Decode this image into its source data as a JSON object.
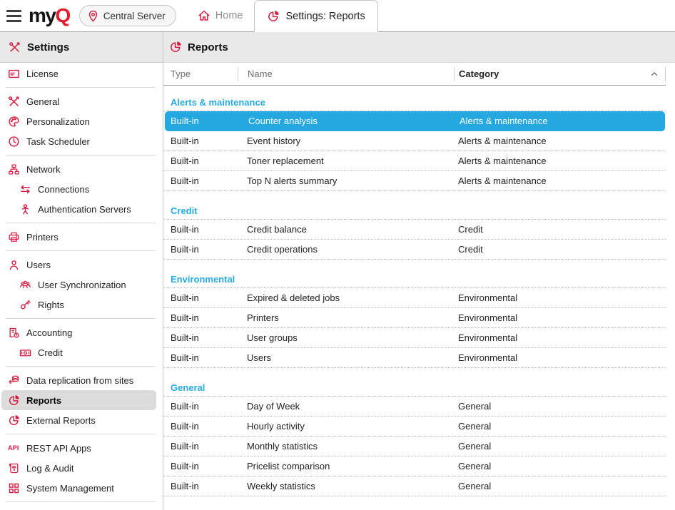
{
  "topbar": {
    "logo_my": "my",
    "logo_q": "Q",
    "server_button_label": "Central Server",
    "home_tab_label": "Home",
    "settings_tab_label": "Settings: Reports"
  },
  "icons": {
    "api_text": "API"
  },
  "sidebar": {
    "title": "Settings",
    "groups": [
      {
        "items": [
          {
            "label": "License",
            "icon": "license"
          }
        ]
      },
      {
        "items": [
          {
            "label": "General",
            "icon": "tools"
          },
          {
            "label": "Personalization",
            "icon": "palette"
          },
          {
            "label": "Task Scheduler",
            "icon": "clock"
          }
        ]
      },
      {
        "items": [
          {
            "label": "Network",
            "icon": "network"
          },
          {
            "label": "Connections",
            "icon": "connections",
            "indent": true
          },
          {
            "label": "Authentication Servers",
            "icon": "auth",
            "indent": true
          }
        ]
      },
      {
        "items": [
          {
            "label": "Printers",
            "icon": "printer"
          }
        ]
      },
      {
        "items": [
          {
            "label": "Users",
            "icon": "user"
          },
          {
            "label": "User Synchronization",
            "icon": "usersync",
            "indent": true
          },
          {
            "label": "Rights",
            "icon": "key",
            "indent": true
          }
        ]
      },
      {
        "items": [
          {
            "label": "Accounting",
            "icon": "accounting"
          },
          {
            "label": "Credit",
            "icon": "money",
            "indent": true
          }
        ]
      },
      {
        "items": [
          {
            "label": "Data replication from sites",
            "icon": "replication"
          },
          {
            "label": "Reports",
            "icon": "pie",
            "selected": true
          },
          {
            "label": "External Reports",
            "icon": "pie"
          }
        ]
      },
      {
        "items": [
          {
            "label": "REST API Apps",
            "icon": "api"
          },
          {
            "label": "Log & Audit",
            "icon": "log"
          },
          {
            "label": "System Management",
            "icon": "grid"
          }
        ]
      }
    ]
  },
  "main": {
    "title": "Reports",
    "table": {
      "columns": [
        {
          "label": "Type"
        },
        {
          "label": "Name"
        },
        {
          "label": "Category",
          "sort": "asc"
        }
      ],
      "groups": [
        {
          "name": "Alerts & maintenance",
          "rows": [
            {
              "type": "Built-in",
              "name": "Counter analysis",
              "category": "Alerts & maintenance",
              "selected": true
            },
            {
              "type": "Built-in",
              "name": "Event history",
              "category": "Alerts & maintenance"
            },
            {
              "type": "Built-in",
              "name": "Toner replacement",
              "category": "Alerts & maintenance"
            },
            {
              "type": "Built-in",
              "name": "Top N alerts summary",
              "category": "Alerts & maintenance"
            }
          ]
        },
        {
          "name": "Credit",
          "rows": [
            {
              "type": "Built-in",
              "name": "Credit balance",
              "category": "Credit"
            },
            {
              "type": "Built-in",
              "name": "Credit operations",
              "category": "Credit"
            }
          ]
        },
        {
          "name": "Environmental",
          "rows": [
            {
              "type": "Built-in",
              "name": "Expired & deleted jobs",
              "category": "Environmental"
            },
            {
              "type": "Built-in",
              "name": "Printers",
              "category": "Environmental"
            },
            {
              "type": "Built-in",
              "name": "User groups",
              "category": "Environmental"
            },
            {
              "type": "Built-in",
              "name": "Users",
              "category": "Environmental"
            }
          ]
        },
        {
          "name": "General",
          "rows": [
            {
              "type": "Built-in",
              "name": "Day of Week",
              "category": "General"
            },
            {
              "type": "Built-in",
              "name": "Hourly activity",
              "category": "General"
            },
            {
              "type": "Built-in",
              "name": "Monthly statistics",
              "category": "General"
            },
            {
              "type": "Built-in",
              "name": "Pricelist comparison",
              "category": "General"
            },
            {
              "type": "Built-in",
              "name": "Weekly statistics",
              "category": "General"
            }
          ]
        }
      ]
    }
  },
  "colors": {
    "brand_red": "#d6193c",
    "logo_red": "#e8192c",
    "accent_blue": "#29abe2",
    "selected_row_bg": "#25a7e0",
    "sidebar_selected_bg": "#dcdcdc",
    "header_band_bg": "#e9e9e9"
  }
}
